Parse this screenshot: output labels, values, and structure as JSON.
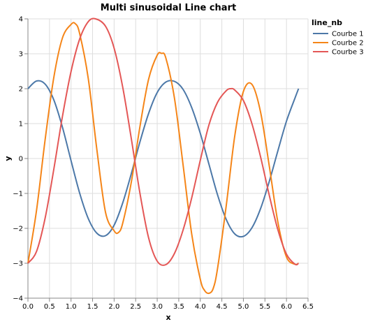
{
  "chart_data": {
    "type": "line",
    "title": "Multi sinusoidal Line chart",
    "xlabel": "x",
    "ylabel": "y",
    "xlim": [
      0,
      6.5
    ],
    "ylim": [
      -4,
      4
    ],
    "x_ticks": [
      0.0,
      0.5,
      1.0,
      1.5,
      2.0,
      2.5,
      3.0,
      3.5,
      4.0,
      4.5,
      5.0,
      5.5,
      6.0,
      6.5
    ],
    "x_tick_labels": [
      "0.0",
      "0.5",
      "1.0",
      "1.5",
      "2.0",
      "2.5",
      "3.0",
      "3.5",
      "4.0",
      "4.5",
      "5.0",
      "5.5",
      "6.0",
      "6.5"
    ],
    "y_ticks": [
      -4,
      -3,
      -2,
      -1,
      0,
      1,
      2,
      3,
      4
    ],
    "y_tick_labels": [
      "−4",
      "−3",
      "−2",
      "−1",
      "0",
      "1",
      "2",
      "3",
      "4"
    ],
    "grid": true,
    "legend": {
      "title": "line_nb",
      "placement": "right"
    },
    "series": [
      {
        "name": "Courbe 1",
        "color": "#4c78a8",
        "points": [
          [
            0.0,
            2.0
          ],
          [
            0.2,
            2.22
          ],
          [
            0.4,
            2.13
          ],
          [
            0.6,
            1.68
          ],
          [
            0.8,
            0.9
          ],
          [
            1.0,
            -0.06
          ],
          [
            1.2,
            -0.99
          ],
          [
            1.4,
            -1.72
          ],
          [
            1.6,
            -2.14
          ],
          [
            1.8,
            -2.21
          ],
          [
            2.0,
            -1.91
          ],
          [
            2.2,
            -1.27
          ],
          [
            2.4,
            -0.43
          ],
          [
            2.6,
            0.48
          ],
          [
            2.8,
            1.29
          ],
          [
            3.0,
            1.89
          ],
          [
            3.2,
            2.19
          ],
          [
            3.4,
            2.21
          ],
          [
            3.6,
            1.98
          ],
          [
            3.8,
            1.46
          ],
          [
            4.0,
            0.72
          ],
          [
            4.2,
            -0.16
          ],
          [
            4.4,
            -1.04
          ],
          [
            4.6,
            -1.74
          ],
          [
            4.8,
            -2.16
          ],
          [
            5.0,
            -2.23
          ],
          [
            5.2,
            -1.98
          ],
          [
            5.4,
            -1.43
          ],
          [
            5.6,
            -0.66
          ],
          [
            5.8,
            0.22
          ],
          [
            6.0,
            1.07
          ],
          [
            6.2,
            1.74
          ],
          [
            6.28,
            2.0
          ]
        ]
      },
      {
        "name": "Courbe 2",
        "color": "#f58518",
        "points": [
          [
            0.0,
            -3.0
          ],
          [
            0.2,
            -1.48
          ],
          [
            0.4,
            0.55
          ],
          [
            0.6,
            2.32
          ],
          [
            0.8,
            3.45
          ],
          [
            1.0,
            3.84
          ],
          [
            1.1,
            3.86
          ],
          [
            1.2,
            3.58
          ],
          [
            1.4,
            2.29
          ],
          [
            1.6,
            0.25
          ],
          [
            1.8,
            -1.54
          ],
          [
            2.0,
            -2.07
          ],
          [
            2.1,
            -2.12
          ],
          [
            2.2,
            -1.85
          ],
          [
            2.4,
            -0.67
          ],
          [
            2.6,
            0.92
          ],
          [
            2.8,
            2.27
          ],
          [
            3.0,
            2.96
          ],
          [
            3.1,
            3.01
          ],
          [
            3.2,
            2.88
          ],
          [
            3.4,
            1.73
          ],
          [
            3.6,
            -0.18
          ],
          [
            3.8,
            -2.16
          ],
          [
            4.0,
            -3.46
          ],
          [
            4.1,
            -3.78
          ],
          [
            4.2,
            -3.86
          ],
          [
            4.3,
            -3.72
          ],
          [
            4.4,
            -3.15
          ],
          [
            4.6,
            -1.37
          ],
          [
            4.8,
            0.65
          ],
          [
            5.0,
            1.92
          ],
          [
            5.2,
            2.12
          ],
          [
            5.4,
            1.32
          ],
          [
            5.6,
            -0.21
          ],
          [
            5.8,
            -1.82
          ],
          [
            6.0,
            -2.82
          ],
          [
            6.2,
            -3.03
          ],
          [
            6.28,
            -3.0
          ]
        ]
      },
      {
        "name": "Courbe 3",
        "color": "#e45756",
        "points": [
          [
            0.0,
            -3.0
          ],
          [
            0.2,
            -2.66
          ],
          [
            0.4,
            -1.7
          ],
          [
            0.6,
            -0.31
          ],
          [
            0.8,
            1.2
          ],
          [
            1.0,
            2.49
          ],
          [
            1.2,
            3.42
          ],
          [
            1.4,
            3.92
          ],
          [
            1.57,
            4.0
          ],
          [
            1.8,
            3.79
          ],
          [
            2.0,
            3.16
          ],
          [
            2.2,
            2.04
          ],
          [
            2.4,
            0.56
          ],
          [
            2.6,
            -1.0
          ],
          [
            2.8,
            -2.27
          ],
          [
            3.0,
            -2.94
          ],
          [
            3.2,
            -3.04
          ],
          [
            3.4,
            -2.72
          ],
          [
            3.6,
            -2.05
          ],
          [
            3.8,
            -1.13
          ],
          [
            4.0,
            -0.05
          ],
          [
            4.2,
            0.96
          ],
          [
            4.4,
            1.61
          ],
          [
            4.6,
            1.94
          ],
          [
            4.71,
            2.0
          ],
          [
            4.8,
            1.96
          ],
          [
            5.0,
            1.66
          ],
          [
            5.2,
            0.99
          ],
          [
            5.4,
            0.04
          ],
          [
            5.6,
            -1.05
          ],
          [
            5.8,
            -2.04
          ],
          [
            6.0,
            -2.74
          ],
          [
            6.2,
            -3.03
          ],
          [
            6.28,
            -3.0
          ]
        ]
      }
    ]
  }
}
